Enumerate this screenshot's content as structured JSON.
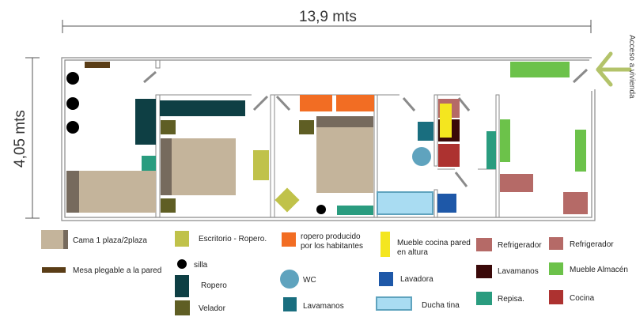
{
  "dimensions": {
    "width_label": "13,9 mts",
    "height_label": "4,05 mts"
  },
  "entrance": {
    "label": "Acceso a vivienda"
  },
  "colors": {
    "wall": "#8a8a8a",
    "bed": "#c4b49b",
    "bed_head": "#766a5d",
    "desk": "#c0c24a",
    "chair": "#000000",
    "wardrobe": "#0e3f44",
    "nightstand": "#5f5e24",
    "table": "#5a3d16",
    "orange": "#f26d23",
    "wc": "#5fa3be",
    "sink": "#196e7f",
    "kitchen_wall": "#f4e61f",
    "washer": "#1e58a8",
    "shower": "#a9dcf2",
    "fridge": "#b56a67",
    "sink2": "#3a0909",
    "shelf": "#2a9c7f",
    "pantry": "#6cc24a",
    "stove": "#ad3230"
  },
  "legend": {
    "bed": "Cama 1 plaza/2plaza",
    "table": "Mesa plegable a la pared",
    "desk": "Escritorio - Ropero.",
    "chair": "silla",
    "wardrobe": "Ropero",
    "nightstand": "Velador",
    "orange_wardrobe": "ropero producido por los habitantes",
    "wc": "WC",
    "sink": "Lavamanos",
    "kitchen_wall": "Mueble cocina pared en altura",
    "washer": "Lavadora",
    "shower": "Ducha tina",
    "fridge1": "Refrigerador",
    "sink2": "Lavamanos",
    "shelf": "Repisa.",
    "fridge2": "Refrigerador",
    "pantry": "Mueble Almacén",
    "stove": "Cocina"
  }
}
